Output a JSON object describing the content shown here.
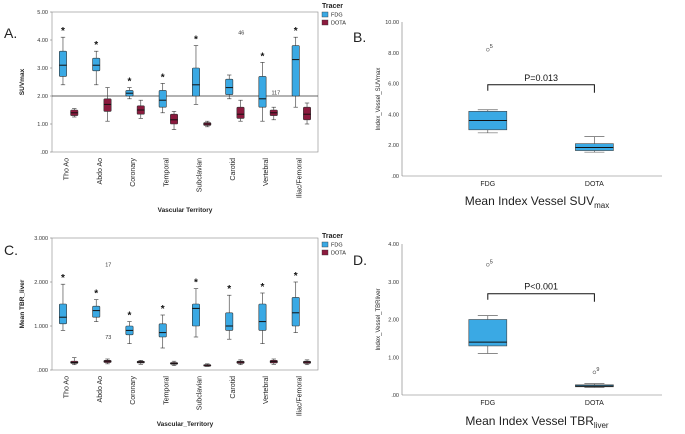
{
  "chart_data": [
    {
      "id": "A",
      "panel_label": "A.",
      "type": "grouped-boxplot",
      "ylabel": "SUVmax",
      "xlabel": "Vascular Territory",
      "ylim": [
        0,
        5
      ],
      "yticks": [
        ".00",
        "1.00",
        "2.00",
        "3.00",
        "4.00",
        "5.00"
      ],
      "ref_line": 2.0,
      "legend": {
        "title": "Tracer",
        "items": [
          {
            "name": "FDG",
            "color": "#3aa9e4"
          },
          {
            "name": "DOTA",
            "color": "#8b1a3e"
          }
        ]
      },
      "categories": [
        "Tho Ao",
        "Abdo Ao",
        "Coronary",
        "Temporal",
        "Subclavian",
        "Carotid",
        "Vertebral",
        "Iliac/Femoral"
      ],
      "fdg": [
        {
          "min": 2.4,
          "q1": 2.7,
          "med": 3.1,
          "q3": 3.6,
          "max": 4.1,
          "star": true
        },
        {
          "min": 2.4,
          "q1": 2.9,
          "med": 3.1,
          "q3": 3.35,
          "max": 3.6,
          "star": true
        },
        {
          "min": 1.9,
          "q1": 2.0,
          "med": 2.1,
          "q3": 2.2,
          "max": 2.3,
          "star": true
        },
        {
          "min": 1.4,
          "q1": 1.6,
          "med": 1.85,
          "q3": 2.2,
          "max": 2.45,
          "star": true
        },
        {
          "min": 1.7,
          "q1": 2.0,
          "med": 2.4,
          "q3": 3.0,
          "max": 3.8,
          "star": true
        },
        {
          "min": 1.9,
          "q1": 2.05,
          "med": 2.3,
          "q3": 2.6,
          "max": 2.75,
          "star": false
        },
        {
          "min": 1.1,
          "q1": 1.6,
          "med": 1.9,
          "q3": 2.7,
          "max": 3.2,
          "star": true
        },
        {
          "min": 1.6,
          "q1": 2.0,
          "med": 3.3,
          "q3": 3.8,
          "max": 4.1,
          "star": true
        }
      ],
      "dota": [
        {
          "min": 1.25,
          "q1": 1.3,
          "med": 1.4,
          "q3": 1.5,
          "max": 1.55
        },
        {
          "min": 1.1,
          "q1": 1.45,
          "med": 1.7,
          "q3": 1.9,
          "max": 2.3
        },
        {
          "min": 1.2,
          "q1": 1.35,
          "med": 1.5,
          "q3": 1.65,
          "max": 1.85
        },
        {
          "min": 0.8,
          "q1": 1.0,
          "med": 1.15,
          "q3": 1.35,
          "max": 1.45
        },
        {
          "min": 0.9,
          "q1": 0.95,
          "med": 1.0,
          "q3": 1.05,
          "max": 1.1
        },
        {
          "min": 1.1,
          "q1": 1.2,
          "med": 1.35,
          "q3": 1.6,
          "max": 1.85
        },
        {
          "min": 1.15,
          "q1": 1.3,
          "med": 1.4,
          "q3": 1.5,
          "max": 1.6
        },
        {
          "min": 1.0,
          "q1": 1.15,
          "med": 1.35,
          "q3": 1.6,
          "max": 1.75
        }
      ],
      "annotations": [
        {
          "text": "46",
          "cat": 5,
          "y": 4.2
        },
        {
          "text": "117",
          "cat": 6,
          "y": 2.05
        }
      ]
    },
    {
      "id": "B",
      "panel_label": "B.",
      "type": "boxplot",
      "ylabel": "Index_Vessel_SUVmax",
      "title_main": "Mean Index Vessel SUV",
      "title_sub": "max",
      "ylim": [
        0,
        10
      ],
      "yticks": [
        ".00",
        "2.00",
        "4.00",
        "6.00",
        "8.00",
        "10.00"
      ],
      "categories": [
        "FDG",
        "DOTA"
      ],
      "boxes": [
        {
          "min": 2.8,
          "q1": 3.0,
          "med": 3.6,
          "q3": 4.2,
          "max": 4.3
        },
        {
          "min": 1.55,
          "q1": 1.65,
          "med": 1.85,
          "q3": 2.1,
          "max": 2.55
        }
      ],
      "outliers": [
        {
          "cat": 0,
          "y": 8.2,
          "label": "5"
        }
      ],
      "pvalue": "P=0.013"
    },
    {
      "id": "C",
      "panel_label": "C.",
      "type": "grouped-boxplot",
      "ylabel": "Mean TBR_liver",
      "xlabel": "Vascular_Territory",
      "ylim": [
        0,
        3
      ],
      "yticks": [
        ".000",
        "1.000",
        "2.000",
        "3.000"
      ],
      "legend": {
        "title": "Tracer",
        "items": [
          {
            "name": "FDG",
            "color": "#3aa9e4"
          },
          {
            "name": "DOTA",
            "color": "#8b1a3e"
          }
        ]
      },
      "categories": [
        "Tho Ao",
        "Abdo Ao",
        "Coronary",
        "Temporal",
        "Subclavian",
        "Carotid",
        "Vertebral",
        "Iliac/Femoral"
      ],
      "fdg": [
        {
          "min": 0.9,
          "q1": 1.05,
          "med": 1.2,
          "q3": 1.5,
          "max": 1.95,
          "star": true
        },
        {
          "min": 1.1,
          "q1": 1.2,
          "med": 1.35,
          "q3": 1.45,
          "max": 1.6,
          "star": true
        },
        {
          "min": 0.6,
          "q1": 0.8,
          "med": 0.9,
          "q3": 1.0,
          "max": 1.1,
          "star": true
        },
        {
          "min": 0.5,
          "q1": 0.75,
          "med": 0.85,
          "q3": 1.05,
          "max": 1.25,
          "star": true
        },
        {
          "min": 0.75,
          "q1": 1.0,
          "med": 1.4,
          "q3": 1.5,
          "max": 1.85,
          "star": true
        },
        {
          "min": 0.7,
          "q1": 0.9,
          "med": 1.0,
          "q3": 1.3,
          "max": 1.7,
          "star": true
        },
        {
          "min": 0.6,
          "q1": 0.9,
          "med": 1.1,
          "q3": 1.5,
          "max": 1.75,
          "star": true
        },
        {
          "min": 0.85,
          "q1": 1.0,
          "med": 1.3,
          "q3": 1.65,
          "max": 2.0,
          "star": true
        }
      ],
      "dota": [
        {
          "min": 0.12,
          "q1": 0.15,
          "med": 0.17,
          "q3": 0.2,
          "max": 0.28
        },
        {
          "min": 0.14,
          "q1": 0.17,
          "med": 0.2,
          "q3": 0.22,
          "max": 0.25
        },
        {
          "min": 0.13,
          "q1": 0.16,
          "med": 0.18,
          "q3": 0.2,
          "max": 0.22
        },
        {
          "min": 0.1,
          "q1": 0.13,
          "med": 0.15,
          "q3": 0.17,
          "max": 0.2
        },
        {
          "min": 0.08,
          "q1": 0.1,
          "med": 0.11,
          "q3": 0.12,
          "max": 0.14
        },
        {
          "min": 0.12,
          "q1": 0.15,
          "med": 0.18,
          "q3": 0.2,
          "max": 0.23
        },
        {
          "min": 0.13,
          "q1": 0.16,
          "med": 0.19,
          "q3": 0.22,
          "max": 0.25
        },
        {
          "min": 0.12,
          "q1": 0.15,
          "med": 0.18,
          "q3": 0.2,
          "max": 0.23
        }
      ],
      "annotations": [
        {
          "text": "17",
          "cat": 1,
          "y": 2.35
        },
        {
          "text": "73",
          "cat": 1,
          "y": 0.7
        }
      ]
    },
    {
      "id": "D",
      "panel_label": "D.",
      "type": "boxplot",
      "ylabel": "Index_Vessel_TBRliver",
      "title_main": "Mean Index Vessel TBR",
      "title_sub": "liver",
      "ylim": [
        0,
        4
      ],
      "yticks": [
        ".00",
        "1.00",
        "2.00",
        "3.00",
        "4.00"
      ],
      "categories": [
        "FDG",
        "DOTA"
      ],
      "boxes": [
        {
          "min": 1.1,
          "q1": 1.3,
          "med": 1.4,
          "q3": 2.0,
          "max": 2.1
        },
        {
          "min": 0.2,
          "q1": 0.22,
          "med": 0.24,
          "q3": 0.27,
          "max": 0.3
        }
      ],
      "outliers": [
        {
          "cat": 0,
          "y": 3.45,
          "label": "5"
        },
        {
          "cat": 1,
          "y": 0.6,
          "label": "9"
        }
      ],
      "pvalue": "P<0.001"
    }
  ]
}
